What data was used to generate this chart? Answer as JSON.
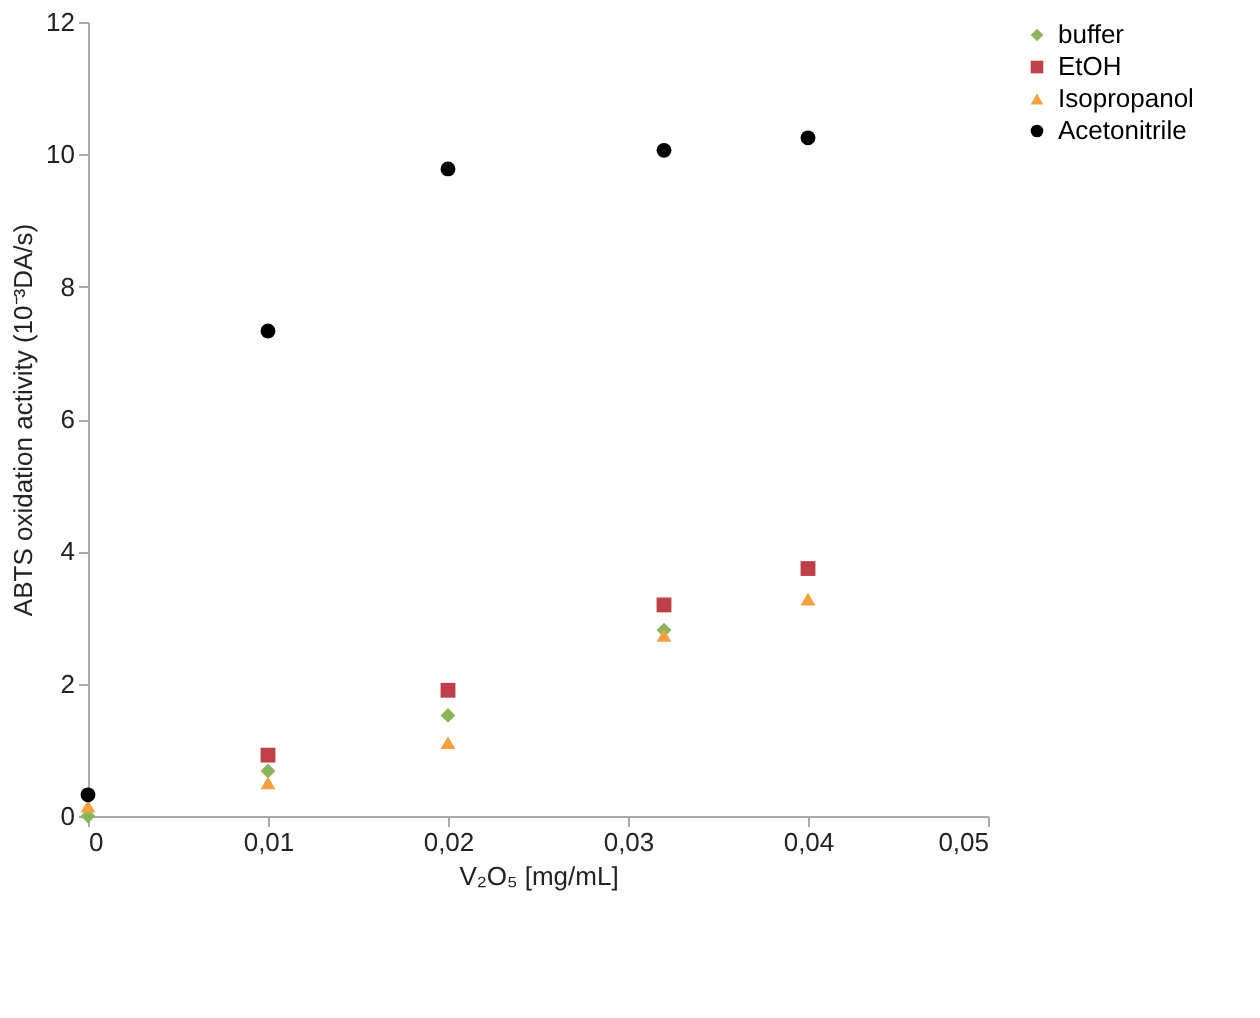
{
  "chart_data": {
    "type": "scatter",
    "xlabel": "V₂O₅ [mg/mL]",
    "ylabel": "ABTS oxidation activity (10⁻³DA/s)",
    "x": [
      0,
      0.01,
      0.02,
      0.032,
      0.04
    ],
    "series": [
      {
        "name": "buffer",
        "color": "#8cb559",
        "marker": "diamond",
        "values": [
          0,
          0.68,
          1.52,
          2.81,
          null
        ]
      },
      {
        "name": "EtOH",
        "color": "#c0404a",
        "marker": "square",
        "values": [
          null,
          0.92,
          1.9,
          3.19,
          3.74
        ]
      },
      {
        "name": "Isopropanol",
        "color": "#f5a040",
        "marker": "triangle",
        "values": [
          0.15,
          0.5,
          1.11,
          2.73,
          3.28
        ]
      },
      {
        "name": "Acetonitrile",
        "color": "#000000",
        "marker": "circle",
        "values": [
          0.32,
          7.33,
          9.78,
          10.06,
          10.25
        ]
      }
    ],
    "xlim": [
      0,
      0.05
    ],
    "xticks": [
      0,
      {
        "value": 0.01,
        "label": "0,01"
      },
      {
        "value": 0.02,
        "label": "0,02"
      },
      {
        "value": 0.03,
        "label": "0,03"
      },
      {
        "value": 0.04,
        "label": "0,04"
      },
      {
        "value": 0.05,
        "label": "0,05"
      }
    ],
    "ylim": [
      0,
      12
    ],
    "yticks": [
      0,
      2,
      4,
      6,
      8,
      10,
      12
    ],
    "grid": false,
    "legend": "right"
  }
}
